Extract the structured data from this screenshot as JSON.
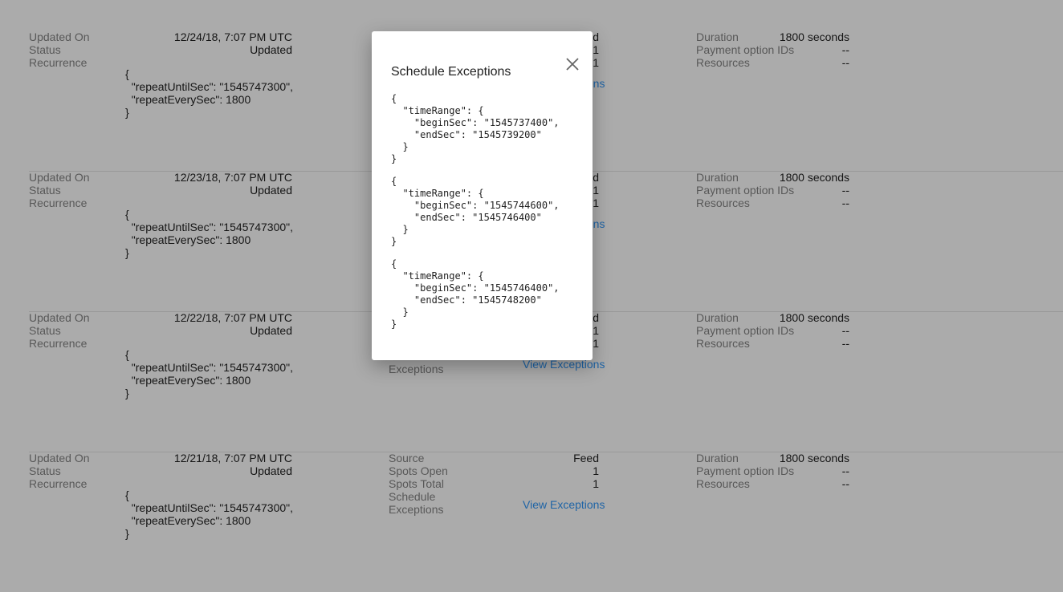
{
  "records": [
    {
      "updated_on": "12/24/18, 7:07 PM UTC",
      "status": "Updated",
      "recurrence": "{\n  \"repeatUntilSec\": \"1545747300\",\n  \"repeatEverySec\": 1800\n}",
      "source": "Feed",
      "spots_open": "1",
      "spots_total": "1",
      "duration": "1800 seconds",
      "payment_option_ids": "--",
      "resources": "--"
    },
    {
      "updated_on": "12/23/18, 7:07 PM UTC",
      "status": "Updated",
      "recurrence": "{\n  \"repeatUntilSec\": \"1545747300\",\n  \"repeatEverySec\": 1800\n}",
      "source": "Feed",
      "spots_open": "1",
      "spots_total": "1",
      "duration": "1800 seconds",
      "payment_option_ids": "--",
      "resources": "--"
    },
    {
      "updated_on": "12/22/18, 7:07 PM UTC",
      "status": "Updated",
      "recurrence": "{\n  \"repeatUntilSec\": \"1545747300\",\n  \"repeatEverySec\": 1800\n}",
      "source": "Feed",
      "spots_open": "1",
      "spots_total": "1",
      "duration": "1800 seconds",
      "payment_option_ids": "--",
      "resources": "--"
    },
    {
      "updated_on": "12/21/18, 7:07 PM UTC",
      "status": "Updated",
      "recurrence": "{\n  \"repeatUntilSec\": \"1545747300\",\n  \"repeatEverySec\": 1800\n}",
      "source": "Feed",
      "spots_open": "1",
      "spots_total": "1",
      "duration": "1800 seconds",
      "payment_option_ids": "--",
      "resources": "--"
    }
  ],
  "labels": {
    "updated_on": "Updated On",
    "status": "Status",
    "recurrence": "Recurrence",
    "source": "Source",
    "spots_open": "Spots Open",
    "spots_total": "Spots Total",
    "schedule_exceptions": "Schedule\nExceptions",
    "duration": "Duration",
    "payment_option_ids": "Payment option IDs",
    "resources": "Resources",
    "view_exceptions": "View Exceptions"
  },
  "modal": {
    "title": "Schedule Exceptions",
    "close_icon": "close-icon",
    "exceptions": [
      "{\n  \"timeRange\": {\n    \"beginSec\": \"1545737400\",\n    \"endSec\": \"1545739200\"\n  }\n}",
      "{\n  \"timeRange\": {\n    \"beginSec\": \"1545744600\",\n    \"endSec\": \"1545746400\"\n  }\n}",
      "{\n  \"timeRange\": {\n    \"beginSec\": \"1545746400\",\n    \"endSec\": \"1545748200\"\n  }\n}"
    ]
  }
}
